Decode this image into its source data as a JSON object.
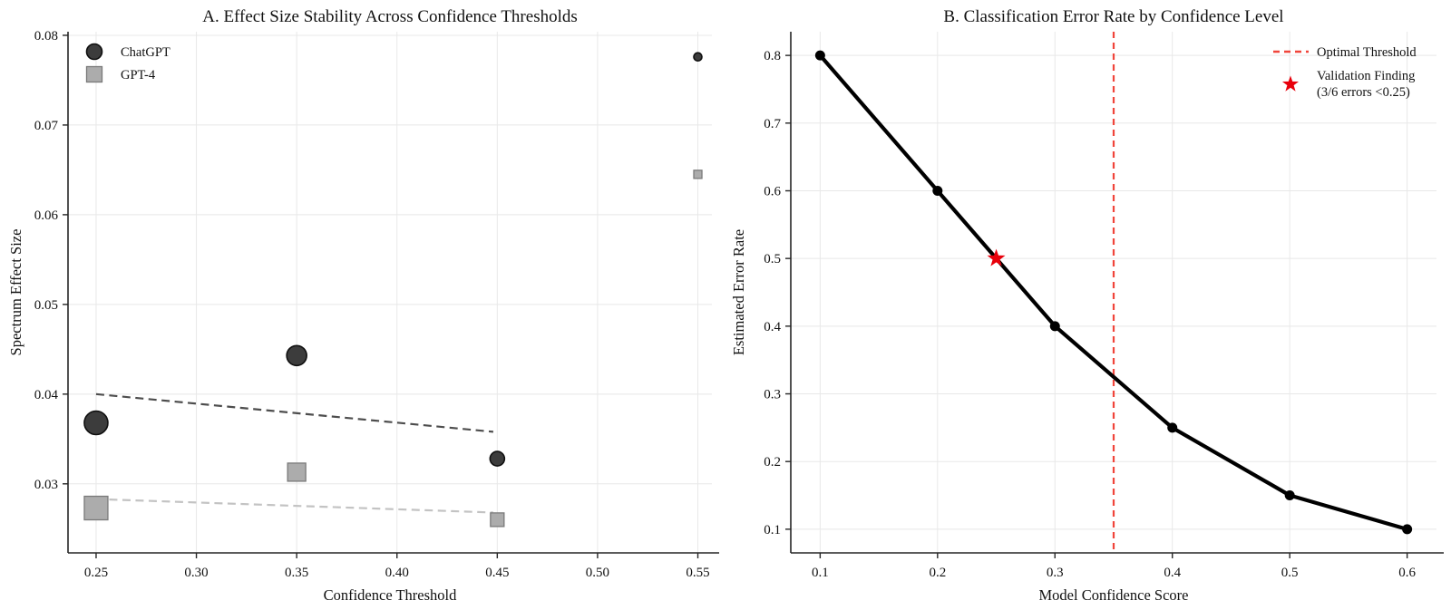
{
  "figure": {
    "background": "#ffffff",
    "text_color": "#111111",
    "grid_color": "#e8e8e8",
    "spine_color": "#262626"
  },
  "chart_data": [
    {
      "id": "panel_a",
      "type": "scatter",
      "title": "A. Effect Size Stability Across Confidence Thresholds",
      "xlabel": "Confidence Threshold",
      "ylabel": "Spectrum Effect Size",
      "xlim": [
        0.236,
        0.557
      ],
      "ylim": [
        0.0223,
        0.0804
      ],
      "grid": true,
      "xticks": {
        "values": [
          0.25,
          0.3,
          0.35,
          0.4,
          0.45,
          0.5,
          0.55
        ],
        "labels": [
          "0.25",
          "0.30",
          "0.35",
          "0.40",
          "0.45",
          "0.50",
          "0.55"
        ]
      },
      "yticks": {
        "values": [
          0.03,
          0.04,
          0.05,
          0.06,
          0.07,
          0.08
        ],
        "labels": [
          "0.03",
          "0.04",
          "0.05",
          "0.06",
          "0.07",
          "0.08"
        ]
      },
      "series": [
        {
          "name": "ChatGPT",
          "marker": "circle",
          "fill": "#3c3c3c",
          "edge": "#0f0f0f",
          "points": [
            {
              "x": 0.25,
              "y": 0.0368,
              "d": 26
            },
            {
              "x": 0.35,
              "y": 0.0443,
              "d": 22
            },
            {
              "x": 0.45,
              "y": 0.0328,
              "d": 16
            },
            {
              "x": 0.55,
              "y": 0.0776,
              "d": 9
            }
          ]
        },
        {
          "name": "GPT-4",
          "marker": "square",
          "fill": "#acacac",
          "edge": "#7a7a7a",
          "points": [
            {
              "x": 0.25,
              "y": 0.0273,
              "d": 26
            },
            {
              "x": 0.35,
              "y": 0.0313,
              "d": 20
            },
            {
              "x": 0.45,
              "y": 0.026,
              "d": 15
            },
            {
              "x": 0.55,
              "y": 0.0645,
              "d": 9
            }
          ]
        }
      ],
      "trend_lines": [
        {
          "series": "ChatGPT",
          "x1": 0.25,
          "y1": 0.04,
          "x2": 0.448,
          "y2": 0.0358,
          "color": "#4d4d4d"
        },
        {
          "series": "GPT-4",
          "x1": 0.25,
          "y1": 0.0283,
          "x2": 0.448,
          "y2": 0.0268,
          "color": "#c3c3c3"
        }
      ],
      "legend": {
        "position": "upper-left",
        "items": [
          {
            "marker": "circle",
            "label": "ChatGPT"
          },
          {
            "marker": "square",
            "label": "GPT-4"
          }
        ]
      }
    },
    {
      "id": "panel_b",
      "type": "line",
      "title": "B. Classification Error Rate by Confidence Level",
      "xlabel": "Model Confidence Score",
      "ylabel": "Estimated Error Rate",
      "xlim": [
        0.075,
        0.625
      ],
      "ylim": [
        0.065,
        0.835
      ],
      "grid": true,
      "xticks": {
        "values": [
          0.1,
          0.2,
          0.3,
          0.4,
          0.5,
          0.6
        ],
        "labels": [
          "0.1",
          "0.2",
          "0.3",
          "0.4",
          "0.5",
          "0.6"
        ]
      },
      "yticks": {
        "values": [
          0.1,
          0.2,
          0.3,
          0.4,
          0.5,
          0.6,
          0.7,
          0.8
        ],
        "labels": [
          "0.1",
          "0.2",
          "0.3",
          "0.4",
          "0.5",
          "0.6",
          "0.7",
          "0.8"
        ]
      },
      "line_series": {
        "name": "error-rate-curve",
        "color": "#000000",
        "x": [
          0.1,
          0.2,
          0.3,
          0.4,
          0.5,
          0.6
        ],
        "y": [
          0.8,
          0.6,
          0.4,
          0.25,
          0.15,
          0.1
        ]
      },
      "vline": {
        "x": 0.35,
        "color": "#f0453b"
      },
      "star": {
        "x": 0.25,
        "y": 0.5,
        "color": "#e8000b"
      },
      "legend": {
        "position": "upper-right",
        "items": [
          {
            "marker": "dashed-line",
            "label": "Optimal Threshold"
          },
          {
            "marker": "star",
            "label_lines": [
              "Validation Finding",
              "(3/6 errors <0.25)"
            ]
          }
        ]
      }
    }
  ]
}
